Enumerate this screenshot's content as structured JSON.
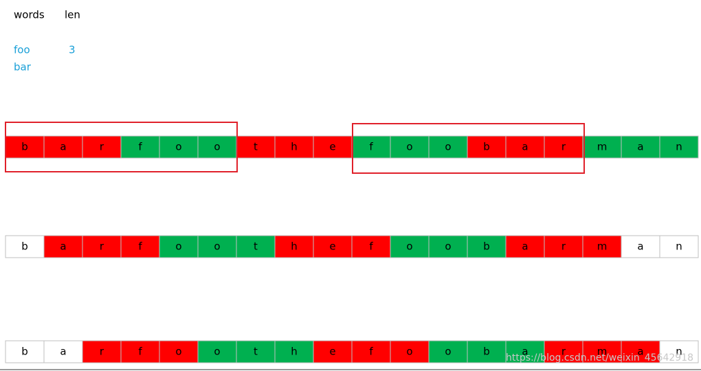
{
  "header": {
    "words_label": "words",
    "len_label": "len"
  },
  "words": [
    "foo",
    "bar"
  ],
  "len": "3",
  "rows": [
    {
      "letters": [
        "b",
        "a",
        "r",
        "f",
        "o",
        "o",
        "t",
        "h",
        "e",
        "f",
        "o",
        "o",
        "b",
        "a",
        "r",
        "m",
        "a",
        "n"
      ],
      "fills": [
        "#ff0000",
        "#ff0000",
        "#ff0000",
        "#00b050",
        "#00b050",
        "#00b050",
        "#ff0000",
        "#ff0000",
        "#ff0000",
        "#00b050",
        "#00b050",
        "#00b050",
        "#ff0000",
        "#ff0000",
        "#ff0000",
        "#00b050",
        "#00b050",
        "#00b050"
      ]
    },
    {
      "letters": [
        "b",
        "a",
        "r",
        "f",
        "o",
        "o",
        "t",
        "h",
        "e",
        "f",
        "o",
        "o",
        "b",
        "a",
        "r",
        "m",
        "a",
        "n"
      ],
      "fills": [
        "#ffffff",
        "#ff0000",
        "#ff0000",
        "#ff0000",
        "#00b050",
        "#00b050",
        "#00b050",
        "#ff0000",
        "#ff0000",
        "#ff0000",
        "#00b050",
        "#00b050",
        "#00b050",
        "#ff0000",
        "#ff0000",
        "#ff0000",
        "#ffffff",
        "#ffffff"
      ]
    },
    {
      "letters": [
        "b",
        "a",
        "r",
        "f",
        "o",
        "o",
        "t",
        "h",
        "e",
        "f",
        "o",
        "o",
        "b",
        "a",
        "r",
        "m",
        "a",
        "n"
      ],
      "fills": [
        "#ffffff",
        "#ffffff",
        "#ff0000",
        "#ff0000",
        "#ff0000",
        "#00b050",
        "#00b050",
        "#00b050",
        "#ff0000",
        "#ff0000",
        "#ff0000",
        "#00b050",
        "#00b050",
        "#00b050",
        "#ff0000",
        "#ff0000",
        "#ff0000",
        "#ffffff"
      ]
    }
  ],
  "watermark": "https://blog.csdn.net/weixin_45642918"
}
